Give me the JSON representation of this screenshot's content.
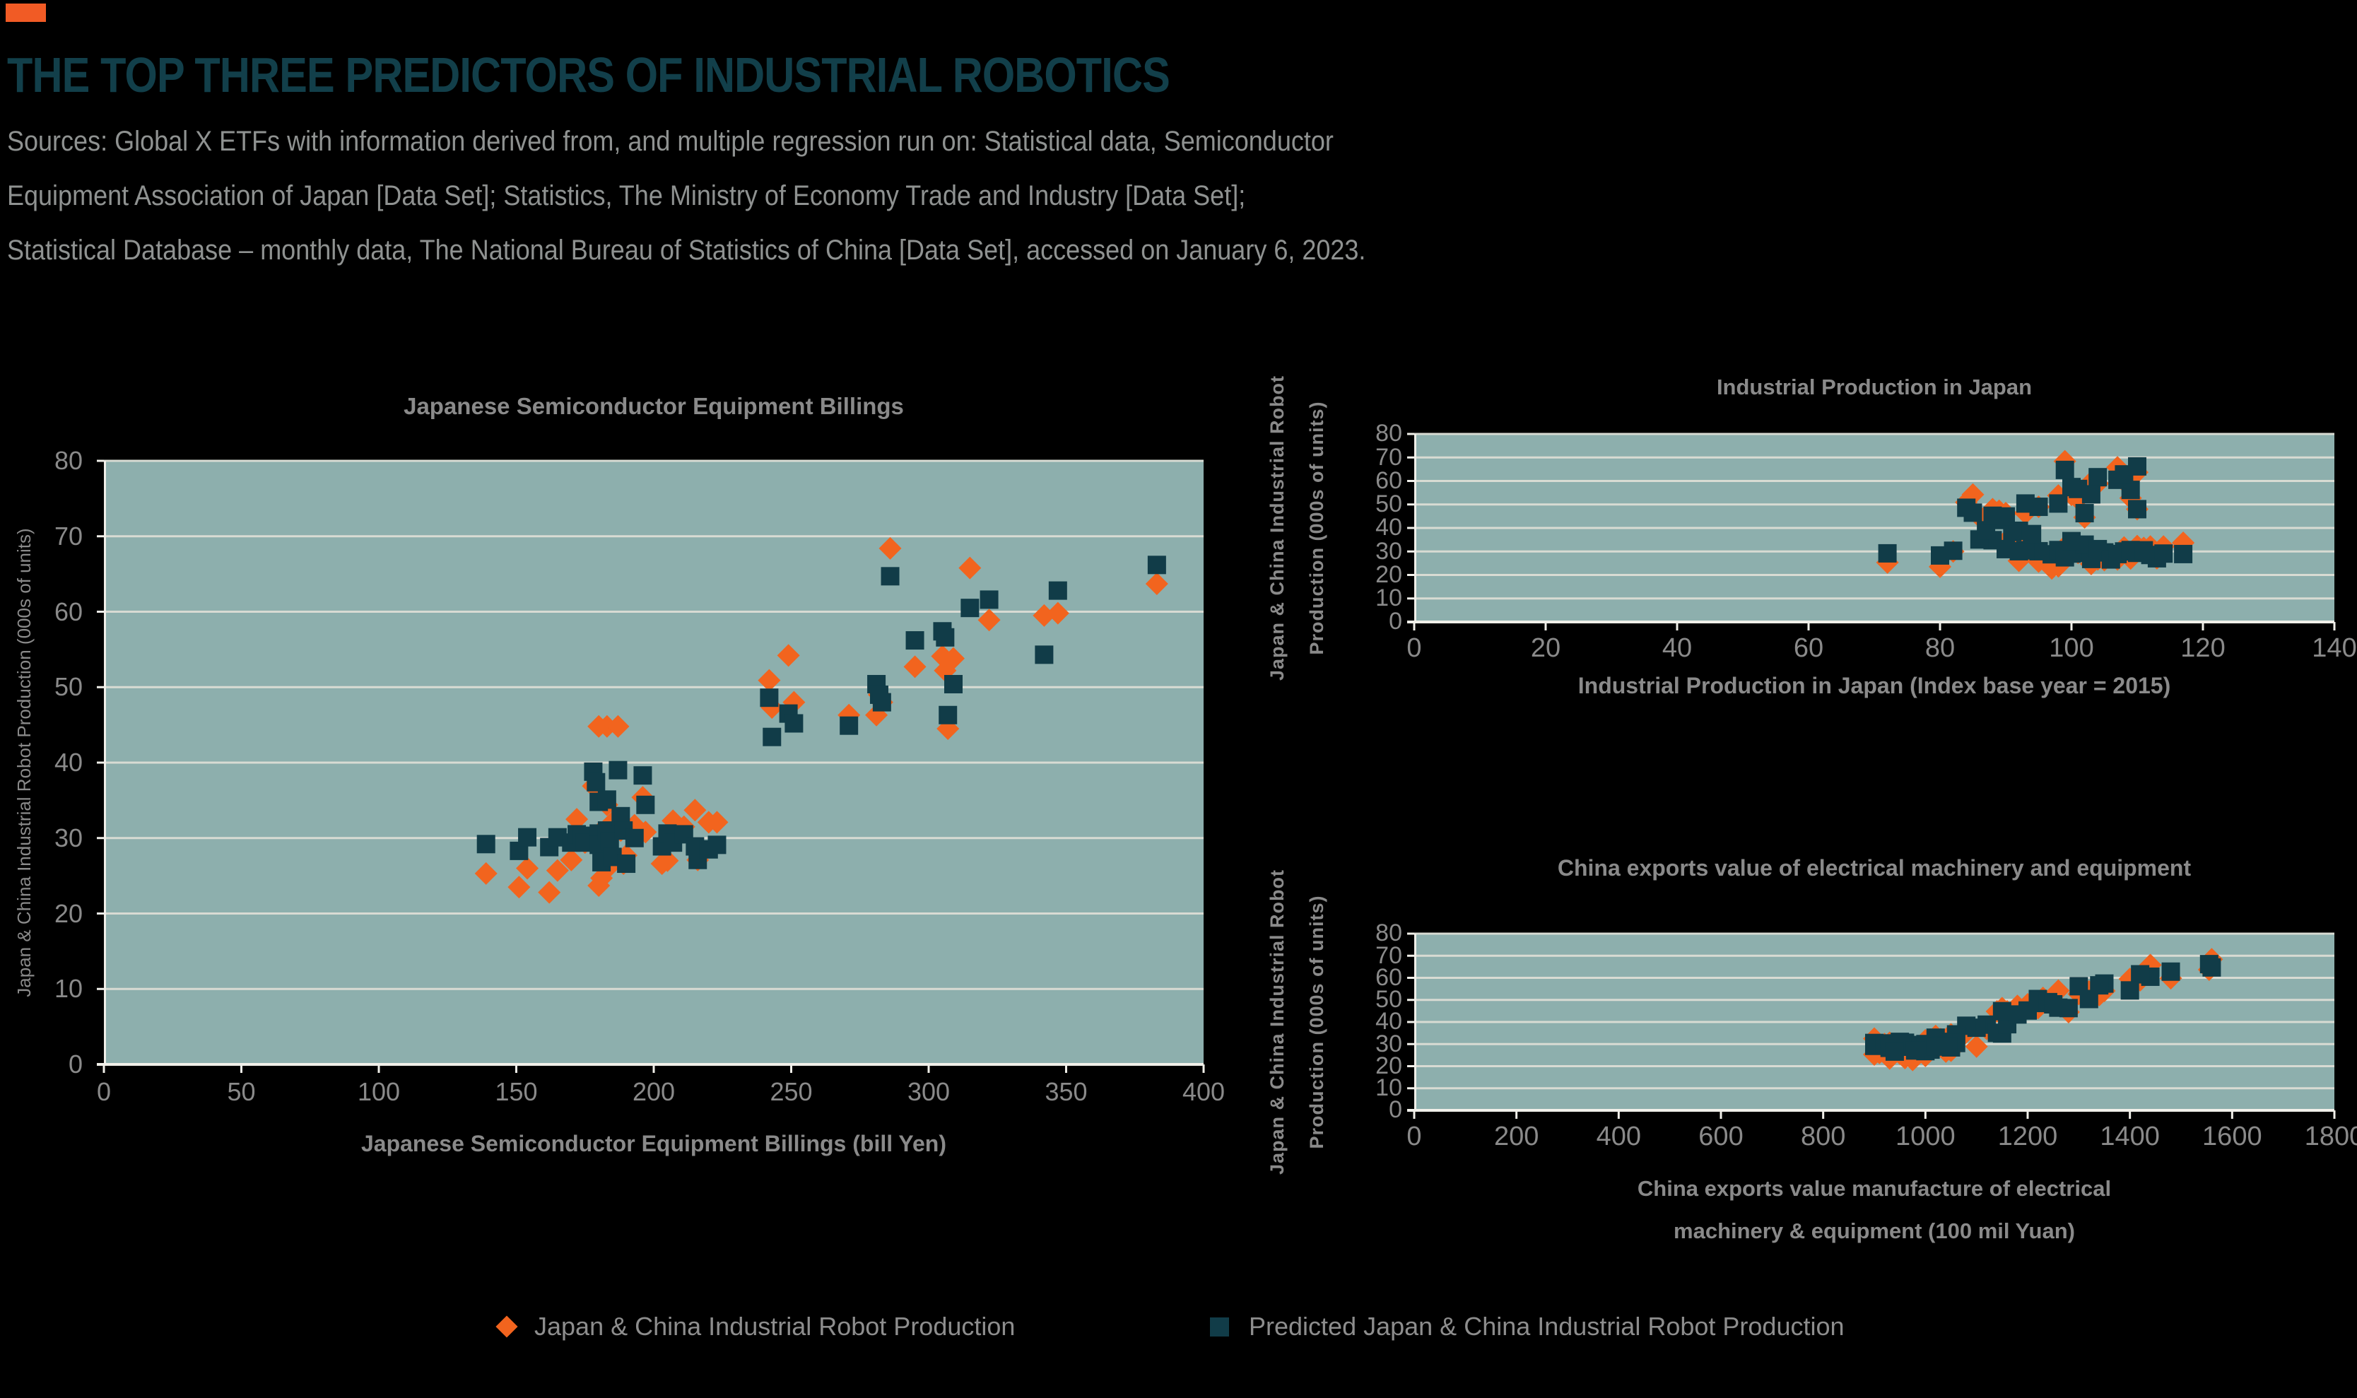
{
  "header": {
    "title": "THE TOP THREE PREDICTORS OF INDUSTRIAL ROBOTICS",
    "sources_lines": [
      "Sources: Global X ETFs with information derived from, and multiple regression run on: Statistical data, Semiconductor",
      "Equipment Association of Japan [Data Set]; Statistics, The Ministry of Economy Trade and Industry [Data Set];",
      "Statistical Database – monthly data, The National Bureau of Statistics of China [Data Set], accessed on January 6, 2023."
    ]
  },
  "palette": {
    "background": "#000000",
    "accent_block": "#F15B25",
    "title_teal": "#123F4A",
    "text_gray": "#8A8A8A",
    "sources_gray": "#8F9291",
    "plot_background": "#8DAFAD",
    "gridline": "#D8DBD3",
    "axis_line": "#F0EFE9",
    "actual_orange": "#F2641E",
    "predicted_teal": "#113C48"
  },
  "legend": {
    "items": [
      {
        "label": "Japan & China Industrial Robot Production",
        "marker": "diamond",
        "color": "#F2641E"
      },
      {
        "label": "Predicted Japan & China Industrial Robot Production",
        "marker": "square",
        "color": "#113C48"
      }
    ]
  },
  "chart_data": {
    "type": "scatter",
    "description": "Three scatter panels sharing the same y variable: actual (orange diamond) and regression-predicted (dark teal square) Japan & China industrial robot production plotted against three predictor variables.",
    "series_meta": {
      "actual": {
        "name": "Japan & China Industrial Robot Production",
        "marker": "diamond",
        "color": "#F2641E"
      },
      "predicted": {
        "name": "Predicted Japan & China Industrial Robot Production",
        "marker": "square",
        "color": "#113C48"
      }
    },
    "observations": {
      "columns": [
        "billings",
        "ip_japan",
        "china_exports",
        "actual",
        "predicted"
      ],
      "rows": [
        [
          139,
          72,
          900,
          25.3,
          29.2
        ],
        [
          151,
          80,
          930,
          23.5,
          28.3
        ],
        [
          154,
          92,
          910,
          26.0,
          30.1
        ],
        [
          162,
          97,
          975,
          22.8,
          28.8
        ],
        [
          165,
          95,
          950,
          25.7,
          30.1
        ],
        [
          170,
          99,
          985,
          27.1,
          29.4
        ],
        [
          172,
          93,
          900,
          32.5,
          30.5
        ],
        [
          174,
          82,
          920,
          30.0,
          30.3
        ],
        [
          175,
          101,
          940,
          29.4,
          29.4
        ],
        [
          178,
          92,
          1120,
          36.9,
          38.8
        ],
        [
          179,
          94,
          1100,
          28.9,
          37.4
        ],
        [
          180,
          88,
          1150,
          44.8,
          34.8
        ],
        [
          180,
          98,
          960,
          23.7,
          30.6
        ],
        [
          180,
          100,
          930,
          30.6,
          29.1
        ],
        [
          181,
          103,
          1000,
          24.7,
          26.8
        ],
        [
          183,
          86,
          1140,
          44.8,
          35.1
        ],
        [
          183,
          90,
          1050,
          34.4,
          31.0
        ],
        [
          184,
          105,
          990,
          26.3,
          29.6
        ],
        [
          185,
          99,
          1010,
          32.1,
          27.5
        ],
        [
          187,
          87,
          1160,
          44.8,
          39.0
        ],
        [
          188,
          102,
          1020,
          31.0,
          32.9
        ],
        [
          189,
          104,
          950,
          26.6,
          31.0
        ],
        [
          190,
          106,
          940,
          27.7,
          26.6
        ],
        [
          193,
          108,
          1000,
          31.7,
          30.0
        ],
        [
          196,
          91,
          1080,
          35.4,
          38.3
        ],
        [
          197,
          100,
          1060,
          30.8,
          34.4
        ],
        [
          203,
          107,
          1040,
          26.6,
          28.9
        ],
        [
          205,
          109,
          1050,
          27.0,
          30.6
        ],
        [
          207,
          110,
          1030,
          32.3,
          29.4
        ],
        [
          211,
          111,
          1060,
          31.5,
          30.5
        ],
        [
          215,
          117,
          1020,
          33.7,
          28.9
        ],
        [
          216,
          113,
          980,
          27.1,
          27.1
        ],
        [
          220,
          112,
          1050,
          32.1,
          28.5
        ],
        [
          223,
          114,
          1045,
          32.1,
          29.1
        ],
        [
          242,
          84,
          1230,
          50.9,
          48.6
        ],
        [
          243,
          89,
          1180,
          47.3,
          43.4
        ],
        [
          249,
          85,
          1260,
          54.2,
          46.5
        ],
        [
          251,
          88,
          1200,
          48.0,
          45.2
        ],
        [
          271,
          90,
          1150,
          46.3,
          44.9
        ],
        [
          281,
          93,
          1220,
          46.3,
          50.4
        ],
        [
          282,
          95,
          1240,
          49.0,
          49.0
        ],
        [
          283,
          110,
          1250,
          48.0,
          48.0
        ],
        [
          286,
          99,
          1560,
          68.4,
          64.7
        ],
        [
          295,
          109,
          1300,
          52.7,
          56.2
        ],
        [
          305,
          100,
          1350,
          54.1,
          57.4
        ],
        [
          306,
          101,
          1340,
          52.2,
          56.6
        ],
        [
          307,
          102,
          1280,
          44.5,
          46.3
        ],
        [
          309,
          98,
          1320,
          53.8,
          50.4
        ],
        [
          315,
          107,
          1440,
          65.8,
          60.5
        ],
        [
          322,
          104,
          1420,
          58.9,
          61.6
        ],
        [
          342,
          103,
          1400,
          59.5,
          54.3
        ],
        [
          347,
          108,
          1480,
          59.8,
          62.8
        ],
        [
          383,
          110,
          1555,
          63.7,
          66.2
        ]
      ]
    },
    "charts": [
      {
        "id": "billings",
        "title": "Japanese Semiconductor Equipment Billings",
        "x_field": "billings",
        "xlabel_lines": [
          "Japanese Semiconductor Equipment Billings (bill Yen)"
        ],
        "ylabel_lines": [
          "Japan & China Industrial Robot Production (000s of units)"
        ],
        "x_min": 0,
        "x_max": 400,
        "x_step": 50,
        "y_min": 0,
        "y_max": 80,
        "y_step": 10,
        "grid": "horizontal"
      },
      {
        "id": "ip_japan",
        "title": "Industrial Production in Japan",
        "x_field": "ip_japan",
        "xlabel_lines": [
          "Industrial Production in Japan (Index base year = 2015)"
        ],
        "ylabel_lines": [
          "Japan & China Industrial Robot",
          "Production (000s of units)"
        ],
        "x_min": 0,
        "x_max": 140,
        "x_step": 20,
        "y_min": 0,
        "y_max": 80,
        "y_step": 10,
        "grid": "horizontal"
      },
      {
        "id": "china_exports",
        "title": "China exports value of electrical machinery and equipment",
        "x_field": "china_exports",
        "xlabel_lines": [
          "China exports value manufacture of electrical",
          "machinery & equipment (100 mil Yuan)"
        ],
        "ylabel_lines": [
          "Japan & China Industrial Robot",
          "Production (000s of units)"
        ],
        "x_min": 0,
        "x_max": 1800,
        "x_step": 200,
        "y_min": 0,
        "y_max": 80,
        "y_step": 10,
        "grid": "horizontal"
      }
    ]
  }
}
